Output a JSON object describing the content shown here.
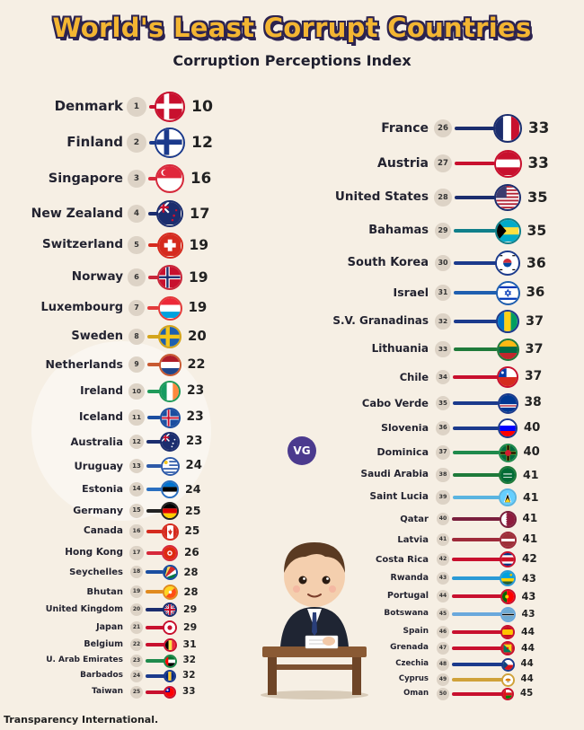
{
  "title": "World's Least Corrupt Countries",
  "subtitle": "Corruption Perceptions Index",
  "source": "Transparency International.",
  "logo_text": "VG",
  "chart_data": {
    "type": "bar",
    "title": "World's Least Corrupt Countries",
    "subtitle": "Corruption Perceptions Index",
    "entries": [
      {
        "rank": "1",
        "country": "Denmark",
        "score": 10,
        "color": "#c8102e",
        "flag": "denmark"
      },
      {
        "rank": "2",
        "country": "Finland",
        "score": 12,
        "color": "#1b3a8c",
        "flag": "finland"
      },
      {
        "rank": "3",
        "country": "Singapore",
        "score": 16,
        "color": "#d6293b",
        "flag": "singapore"
      },
      {
        "rank": "4",
        "country": "New Zealand",
        "score": 17,
        "color": "#1b2d6e",
        "flag": "newzealand"
      },
      {
        "rank": "5",
        "country": "Switzerland",
        "score": 19,
        "color": "#d52b1e",
        "flag": "switzerland"
      },
      {
        "rank": "6",
        "country": "Norway",
        "score": 19,
        "color": "#c8263a",
        "flag": "norway"
      },
      {
        "rank": "7",
        "country": "Luxembourg",
        "score": 19,
        "color": "#e23b3b",
        "flag": "luxembourg"
      },
      {
        "rank": "8",
        "country": "Sweden",
        "score": 20,
        "color": "#d4a51c",
        "flag": "sweden"
      },
      {
        "rank": "9",
        "country": "Netherlands",
        "score": 22,
        "color": "#c85a32",
        "flag": "netherlands"
      },
      {
        "rank": "10",
        "country": "Ireland",
        "score": 23,
        "color": "#1f9a5a",
        "flag": "ireland"
      },
      {
        "rank": "11",
        "country": "Iceland",
        "score": 23,
        "color": "#1c4ea0",
        "flag": "iceland"
      },
      {
        "rank": "12",
        "country": "Australia",
        "score": 23,
        "color": "#1b2d6e",
        "flag": "australia"
      },
      {
        "rank": "13",
        "country": "Uruguay",
        "score": 24,
        "color": "#2e5aa8",
        "flag": "uruguay"
      },
      {
        "rank": "14",
        "country": "Estonia",
        "score": 24,
        "color": "#2a6fc0",
        "flag": "estonia"
      },
      {
        "rank": "15",
        "country": "Germany",
        "score": 25,
        "color": "#222222",
        "flag": "germany"
      },
      {
        "rank": "16",
        "country": "Canada",
        "score": 25,
        "color": "#d52b1e",
        "flag": "canada"
      },
      {
        "rank": "17",
        "country": "Hong Kong",
        "score": 26,
        "color": "#d6293b",
        "flag": "hongkong"
      },
      {
        "rank": "18",
        "country": "Seychelles",
        "score": 28,
        "color": "#1b4ea0",
        "flag": "seychelles"
      },
      {
        "rank": "19",
        "country": "Bhutan",
        "score": 28,
        "color": "#e08a1e",
        "flag": "bhutan"
      },
      {
        "rank": "20",
        "country": "United Kingdom",
        "score": 29,
        "color": "#1b2d6e",
        "flag": "uk"
      },
      {
        "rank": "21",
        "country": "Japan",
        "score": 29,
        "color": "#c8102e",
        "flag": "japan"
      },
      {
        "rank": "22",
        "country": "Belgium",
        "score": 31,
        "color": "#c8102e",
        "flag": "belgium"
      },
      {
        "rank": "23",
        "country": "U. Arab Emirates",
        "score": 32,
        "color": "#1f8a4c",
        "flag": "uae"
      },
      {
        "rank": "24",
        "country": "Barbados",
        "score": 32,
        "color": "#1b3a8c",
        "flag": "barbados"
      },
      {
        "rank": "25",
        "country": "Taiwan",
        "score": 33,
        "color": "#c8102e",
        "flag": "taiwan"
      },
      {
        "rank": "26",
        "country": "France",
        "score": 33,
        "color": "#1b2d6e",
        "flag": "france"
      },
      {
        "rank": "27",
        "country": "Austria",
        "score": 33,
        "color": "#c8102e",
        "flag": "austria"
      },
      {
        "rank": "28",
        "country": "United States",
        "score": 35,
        "color": "#1b2d6e",
        "flag": "usa"
      },
      {
        "rank": "29",
        "country": "Bahamas",
        "score": 35,
        "color": "#0f7f8a",
        "flag": "bahamas"
      },
      {
        "rank": "30",
        "country": "South Korea",
        "score": 36,
        "color": "#1b3a8c",
        "flag": "southkorea"
      },
      {
        "rank": "31",
        "country": "Israel",
        "score": 36,
        "color": "#1f5fb0",
        "flag": "israel"
      },
      {
        "rank": "32",
        "country": "S.V. Granadinas",
        "score": 37,
        "color": "#1b3a8c",
        "flag": "svg"
      },
      {
        "rank": "33",
        "country": "Lithuania",
        "score": 37,
        "color": "#1f7a3a",
        "flag": "lithuania"
      },
      {
        "rank": "34",
        "country": "Chile",
        "score": 37,
        "color": "#c8102e",
        "flag": "chile"
      },
      {
        "rank": "35",
        "country": "Cabo Verde",
        "score": 38,
        "color": "#1b3a8c",
        "flag": "caboverde"
      },
      {
        "rank": "36",
        "country": "Slovenia",
        "score": 40,
        "color": "#1b3a8c",
        "flag": "slovenia"
      },
      {
        "rank": "37",
        "country": "Dominica",
        "score": 40,
        "color": "#1f8a4c",
        "flag": "dominica"
      },
      {
        "rank": "38",
        "country": "Saudi Arabia",
        "score": 41,
        "color": "#1f7a3a",
        "flag": "saudi"
      },
      {
        "rank": "39",
        "country": "Saint Lucia",
        "score": 41,
        "color": "#5ab4e0",
        "flag": "saintlucia"
      },
      {
        "rank": "40",
        "country": "Qatar",
        "score": 41,
        "color": "#7a1f3d",
        "flag": "qatar"
      },
      {
        "rank": "41",
        "country": "Latvia",
        "score": 41,
        "color": "#9e2a3a",
        "flag": "latvia"
      },
      {
        "rank": "42",
        "country": "Costa Rica",
        "score": 42,
        "color": "#c8102e",
        "flag": "costarica"
      },
      {
        "rank": "43",
        "country": "Rwanda",
        "score": 43,
        "color": "#2a9ad6",
        "flag": "rwanda"
      },
      {
        "rank": "44",
        "country": "Portugal",
        "score": 43,
        "color": "#c8102e",
        "flag": "portugal"
      },
      {
        "rank": "45",
        "country": "Botswana",
        "score": 43,
        "color": "#6aa8dc",
        "flag": "botswana"
      },
      {
        "rank": "46",
        "country": "Spain",
        "score": 44,
        "color": "#c8102e",
        "flag": "spain"
      },
      {
        "rank": "47",
        "country": "Grenada",
        "score": 44,
        "color": "#c8102e",
        "flag": "grenada"
      },
      {
        "rank": "48",
        "country": "Czechia",
        "score": 44,
        "color": "#1b3a8c",
        "flag": "czechia"
      },
      {
        "rank": "49",
        "country": "Cyprus",
        "score": 44,
        "color": "#d0a23a",
        "flag": "cyprus"
      },
      {
        "rank": "50",
        "country": "Oman",
        "score": 45,
        "color": "#c8102e",
        "flag": "oman"
      }
    ]
  }
}
